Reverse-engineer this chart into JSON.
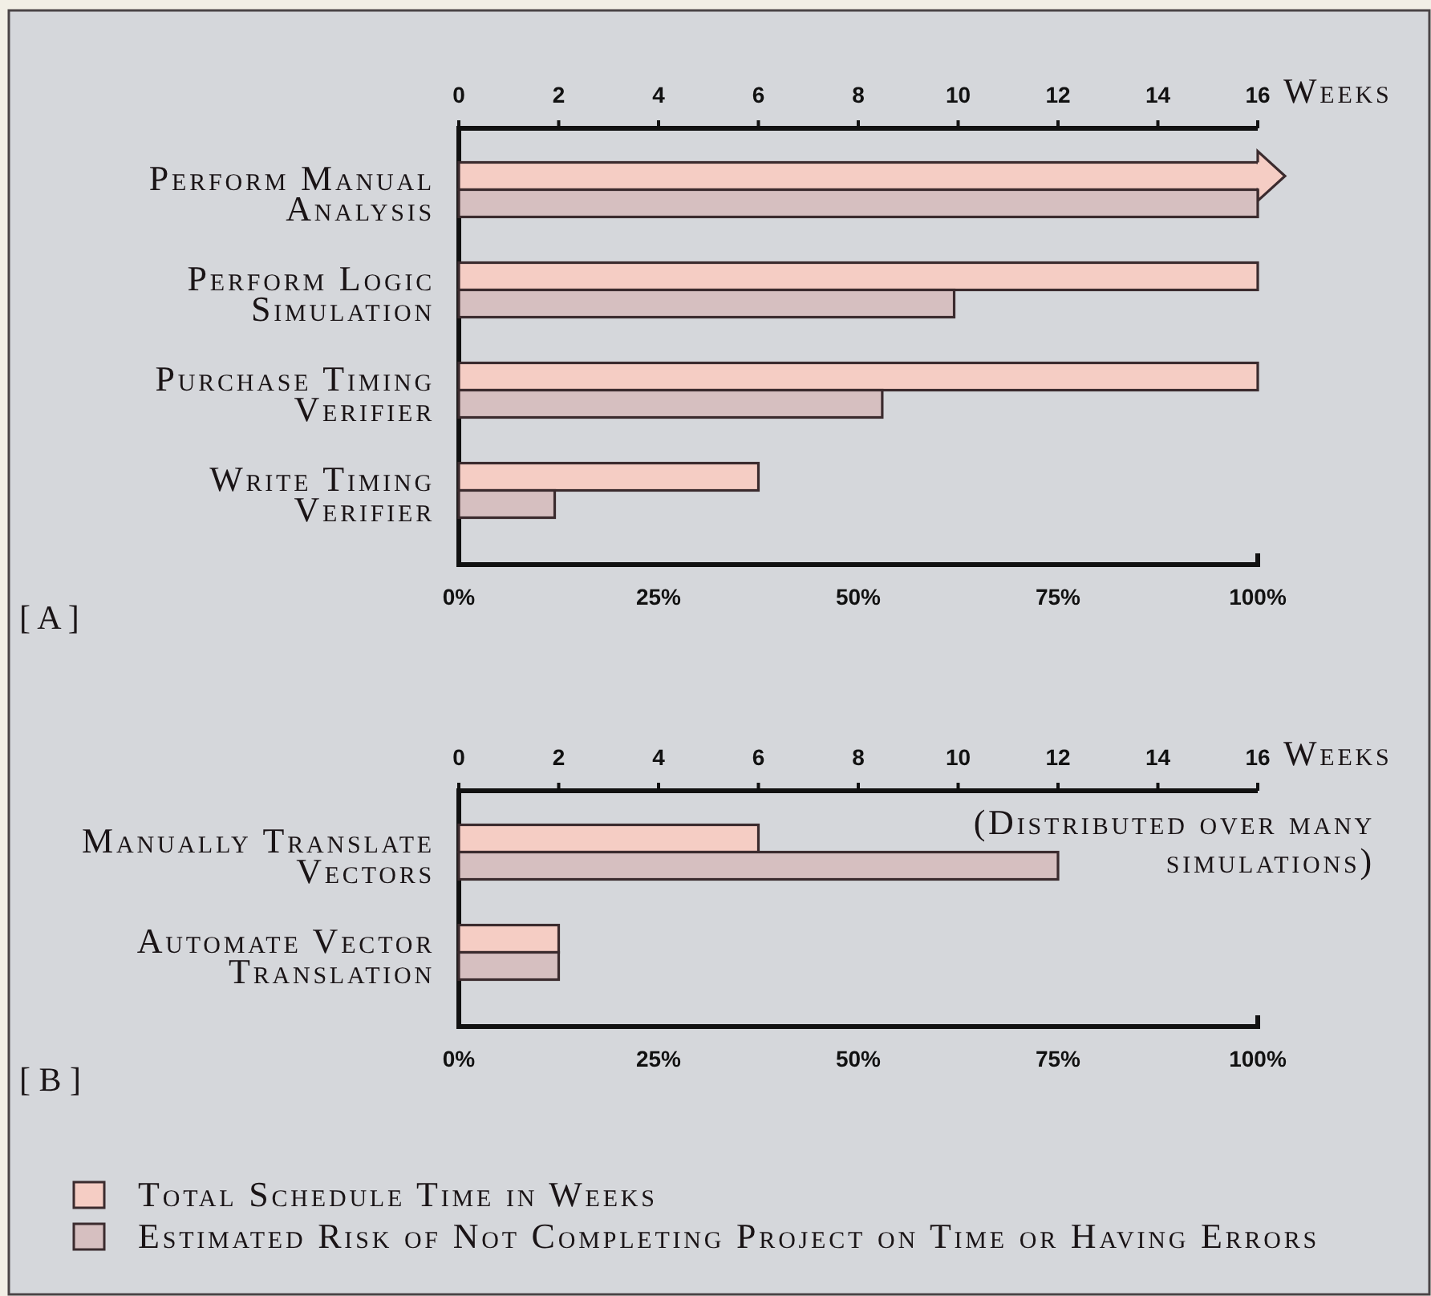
{
  "chart_data": [
    {
      "type": "bar",
      "orientation": "horizontal",
      "title": "[ A ]",
      "categories": [
        "Perform Manual Analysis",
        "Perform Logic Simulation",
        "Purchase Timing Verifier",
        "Write Timing Verifier"
      ],
      "series": [
        {
          "color": "#f5cdc4",
          "values": [
            16,
            16,
            16,
            6
          ],
          "axis": "x2"
        },
        {
          "color": "#d6bfc0",
          "values": [
            100,
            62,
            53,
            12
          ]
        }
      ],
      "xlim": [
        0,
        100
      ],
      "xticks": [
        {
          "value": 0,
          "label": "0%"
        },
        {
          "value": 25,
          "label": "25%"
        },
        {
          "value": 50,
          "label": "50%"
        },
        {
          "value": 75,
          "label": "75%"
        },
        {
          "value": 100,
          "label": "100%"
        }
      ],
      "x2lim": [
        0,
        16
      ],
      "x2ticks": [
        0,
        2,
        4,
        6,
        8,
        10,
        12,
        14,
        16
      ],
      "x2label": "Weeks"
    },
    {
      "type": "bar",
      "orientation": "horizontal",
      "title": "[ B ]",
      "categories": [
        "Manually Translate Vectors",
        "Automate Vector Translation"
      ],
      "series": [
        {
          "name": "Total Schedule Time in Weeks",
          "color": "#f5cdc4",
          "values": [
            6,
            2
          ],
          "axis": "x2"
        },
        {
          "name": "Estimated Risk of Not Completing Project on Time or Having Errors",
          "color": "#d6bfc0",
          "values": [
            75,
            12.5
          ]
        }
      ],
      "xlim": [
        0,
        100
      ],
      "xticks": [
        {
          "value": 0,
          "label": "0%"
        },
        {
          "value": 25,
          "label": "25%"
        },
        {
          "value": 50,
          "label": "50%"
        },
        {
          "value": 75,
          "label": "75%"
        },
        {
          "value": 100,
          "label": "100%"
        }
      ],
      "x2lim": [
        0,
        16
      ],
      "x2ticks": [
        0,
        2,
        4,
        6,
        8,
        10,
        12,
        14,
        16
      ],
      "x2label": "Weeks",
      "annotations": [
        "(Distributed over many simulations)"
      ],
      "legend": "bottom"
    }
  ]
}
